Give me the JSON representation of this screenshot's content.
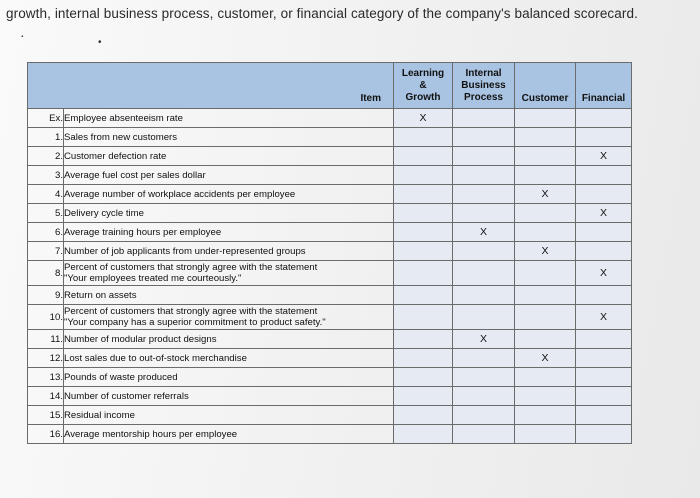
{
  "caption": "growth, internal business process, customer, or financial category of the company's balanced scorecard.",
  "headers": {
    "item": "Item",
    "learning": [
      "Learning",
      "&",
      "Growth"
    ],
    "internal": [
      "Internal",
      "Business",
      "Process"
    ],
    "customer": "Customer",
    "financial": "Financial"
  },
  "rows": [
    {
      "num": "Ex.",
      "item": [
        "Employee absenteeism rate"
      ],
      "learning": "X",
      "internal": "",
      "customer": "",
      "financial": ""
    },
    {
      "num": "1.",
      "item": [
        "Sales from new customers"
      ],
      "learning": "",
      "internal": "",
      "customer": "",
      "financial": ""
    },
    {
      "num": "2.",
      "item": [
        "Customer defection rate"
      ],
      "learning": "",
      "internal": "",
      "customer": "",
      "financial": "X"
    },
    {
      "num": "3.",
      "item": [
        "Average fuel cost per sales dollar"
      ],
      "learning": "",
      "internal": "",
      "customer": "",
      "financial": ""
    },
    {
      "num": "4.",
      "item": [
        "Average number of workplace accidents per employee"
      ],
      "learning": "",
      "internal": "",
      "customer": "X",
      "financial": ""
    },
    {
      "num": "5.",
      "item": [
        "Delivery cycle time"
      ],
      "learning": "",
      "internal": "",
      "customer": "",
      "financial": "X"
    },
    {
      "num": "6.",
      "item": [
        "Average training hours per employee"
      ],
      "learning": "",
      "internal": "X",
      "customer": "",
      "financial": ""
    },
    {
      "num": "7.",
      "item": [
        "Number of job applicants from under-represented groups"
      ],
      "learning": "",
      "internal": "",
      "customer": "X",
      "financial": ""
    },
    {
      "num": "8.",
      "item": [
        "Percent of customers that strongly agree with the statement",
        "\"Your employees treated me courteously.\""
      ],
      "learning": "",
      "internal": "",
      "customer": "",
      "financial": "X"
    },
    {
      "num": "9.",
      "item": [
        "Return on assets"
      ],
      "learning": "",
      "internal": "",
      "customer": "",
      "financial": ""
    },
    {
      "num": "10.",
      "item": [
        "Percent of customers that strongly agree with the statement",
        "\"Your company has a superior commitment to product safety.\""
      ],
      "learning": "",
      "internal": "",
      "customer": "",
      "financial": "X"
    },
    {
      "num": "11.",
      "item": [
        "Number of modular product designs"
      ],
      "learning": "",
      "internal": "X",
      "customer": "",
      "financial": ""
    },
    {
      "num": "12.",
      "item": [
        "Lost sales due to out-of-stock merchandise"
      ],
      "learning": "",
      "internal": "",
      "customer": "X",
      "financial": ""
    },
    {
      "num": "13.",
      "item": [
        "Pounds of waste produced"
      ],
      "learning": "",
      "internal": "",
      "customer": "",
      "financial": ""
    },
    {
      "num": "14.",
      "item": [
        "Number of customer referrals"
      ],
      "learning": "",
      "internal": "",
      "customer": "",
      "financial": ""
    },
    {
      "num": "15.",
      "item": [
        "Residual income"
      ],
      "learning": "",
      "internal": "",
      "customer": "",
      "financial": ""
    },
    {
      "num": "16.",
      "item": [
        "Average mentorship hours per employee"
      ],
      "learning": "",
      "internal": "",
      "customer": "",
      "financial": ""
    }
  ]
}
